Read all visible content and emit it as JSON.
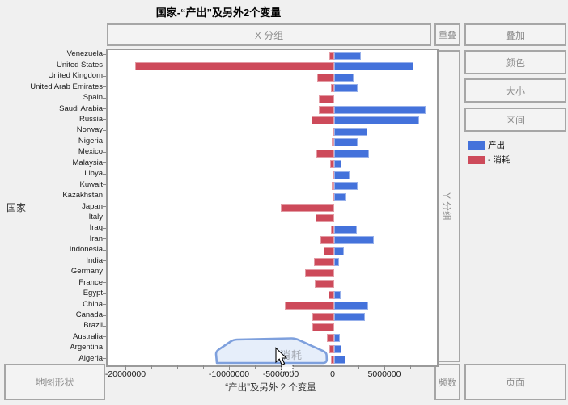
{
  "window": {
    "title": "国家-“产出”及另外2个变量"
  },
  "drop_zones": {
    "x_group": "X 分组",
    "overlap": "重叠",
    "stack": "叠加",
    "color": "颜色",
    "size": "大小",
    "interval": "区间",
    "y_group": "Y 分组",
    "frequency": "频数",
    "page": "页面",
    "map_shape": "地图形状"
  },
  "axes": {
    "y_title": "国家",
    "x_title": "“产出”及另外 2 个变量"
  },
  "selection": {
    "tooltip": "消耗"
  },
  "colors": {
    "production_blue": "#4472db",
    "consumption_red": "#cd4a5a",
    "lasso_stroke": "#7ea0dd",
    "lasso_fill": "rgba(213,226,247,0.6)"
  },
  "chart_data": {
    "type": "bar",
    "orientation": "horizontal",
    "title": "国家-“产出”及另外2个变量",
    "xlabel": "“产出”及另外 2 个变量",
    "ylabel": "国家",
    "xlim": [
      -21875000,
      9921875
    ],
    "grid": false,
    "legend_position": "right",
    "x_tick_labels": [
      {
        "value": -20000000,
        "label": "-20000000"
      },
      {
        "value": -10000000,
        "label": "-10000000"
      },
      {
        "value": -5000000,
        "label": "-5000000"
      },
      {
        "value": 0,
        "label": "0"
      },
      {
        "value": 5000000,
        "label": "5000000"
      }
    ],
    "minor_tick_step": 2500000,
    "series": [
      {
        "name": "产出",
        "key": "production",
        "color": "#4472db"
      },
      {
        "name": "- 消耗",
        "key": "consumption",
        "color": "#cd4a5a"
      }
    ],
    "categories": [
      "Venezuela",
      "United States",
      "United Kingdom",
      "United Arab Emirates",
      "Spain",
      "Saudi Arabia",
      "Russia",
      "Norway",
      "Nigeria",
      "Mexico",
      "Malaysia",
      "Libya",
      "Kuwait",
      "Kazakhstan",
      "Japan",
      "Italy",
      "Iraq",
      "Iran",
      "Indonesia",
      "India",
      "Germany",
      "France",
      "Egypt",
      "China",
      "Canada",
      "Brazil",
      "Australia",
      "Argentina",
      "Algeria"
    ],
    "rows": [
      {
        "country": "Venezuela",
        "production": 2550000,
        "consumption": -490000
      },
      {
        "country": "United States",
        "production": 7630000,
        "consumption": -19220000
      },
      {
        "country": "United Kingdom",
        "production": 1900000,
        "consumption": -1620000
      },
      {
        "country": "United Arab Emirates",
        "production": 2290000,
        "consumption": -290000
      },
      {
        "country": "Spain",
        "production": 0,
        "consumption": -1480000
      },
      {
        "country": "Saudi Arabia",
        "production": 8800000,
        "consumption": -1480000
      },
      {
        "country": "Russia",
        "production": 8200000,
        "consumption": -2210000
      },
      {
        "country": "Norway",
        "production": 3200000,
        "consumption": -180000
      },
      {
        "country": "Nigeria",
        "production": 2240000,
        "consumption": -260000
      },
      {
        "country": "Mexico",
        "production": 3380000,
        "consumption": -1700000
      },
      {
        "country": "Malaysia",
        "production": 730000,
        "consumption": -390000
      },
      {
        "country": "Libya",
        "production": 1460000,
        "consumption": -130000
      },
      {
        "country": "Kuwait",
        "production": 2290000,
        "consumption": -260000
      },
      {
        "country": "Kazakhstan",
        "production": 1170000,
        "consumption": -100000
      },
      {
        "country": "Japan",
        "production": 0,
        "consumption": -5130000
      },
      {
        "country": "Italy",
        "production": 0,
        "consumption": -1800000
      },
      {
        "country": "Iraq",
        "production": 2160000,
        "consumption": -310000
      },
      {
        "country": "Iran",
        "production": 3850000,
        "consumption": -1350000
      },
      {
        "country": "Indonesia",
        "production": 910000,
        "consumption": -1040000
      },
      {
        "country": "India",
        "production": 470000,
        "consumption": -1950000
      },
      {
        "country": "Germany",
        "production": 0,
        "consumption": -2790000
      },
      {
        "country": "France",
        "production": 0,
        "consumption": -1880000
      },
      {
        "country": "Egypt",
        "production": 650000,
        "consumption": -570000
      },
      {
        "country": "China",
        "production": 3260000,
        "consumption": -4790000
      },
      {
        "country": "Canada",
        "production": 3000000,
        "consumption": -2130000
      },
      {
        "country": "Brazil",
        "production": 0,
        "consumption": -2130000
      },
      {
        "country": "Australia",
        "production": 520000,
        "consumption": -700000
      },
      {
        "country": "Argentina",
        "production": 700000,
        "consumption": -470000
      },
      {
        "country": "Algeria",
        "production": 1100000,
        "consumption": -340000
      }
    ]
  }
}
